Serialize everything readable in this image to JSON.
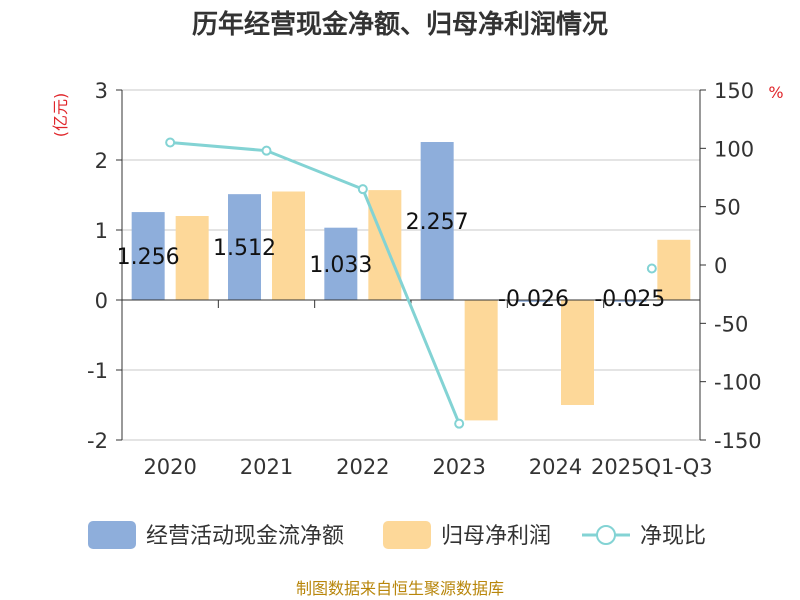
{
  "chart_data": {
    "type": "bar",
    "title": "历年经营现金净额、归母净利润情况",
    "categories": [
      "2020",
      "2021",
      "2022",
      "2023",
      "2024",
      "2025Q1-Q3"
    ],
    "series": [
      {
        "name": "经营活动现金流净额",
        "kind": "bar",
        "axis": "left",
        "color": "#8eaedb",
        "values": [
          1.256,
          1.512,
          1.033,
          2.257,
          -0.026,
          -0.025
        ],
        "labels": [
          "1.256",
          "1.512",
          "1.033",
          "2.257",
          "-0.026",
          "-0.025"
        ]
      },
      {
        "name": "归母净利润",
        "kind": "bar",
        "axis": "left",
        "color": "#fdd899",
        "values": [
          1.2,
          1.55,
          1.57,
          -1.72,
          -1.5,
          0.86
        ]
      },
      {
        "name": "净现比",
        "kind": "line",
        "axis": "right",
        "color": "#83d3d4",
        "values": [
          105,
          98,
          65,
          -136,
          null,
          -3
        ]
      }
    ],
    "left_axis": {
      "unit": "(亿元)",
      "ylim": [
        -2,
        3
      ],
      "ticks": [
        3,
        2,
        1,
        0,
        -1,
        -2
      ]
    },
    "right_axis": {
      "unit": "%",
      "ylim": [
        -150,
        150
      ],
      "ticks": [
        150,
        100,
        50,
        0,
        -50,
        -100,
        -150
      ]
    },
    "source": "制图数据来自恒生聚源数据库"
  }
}
